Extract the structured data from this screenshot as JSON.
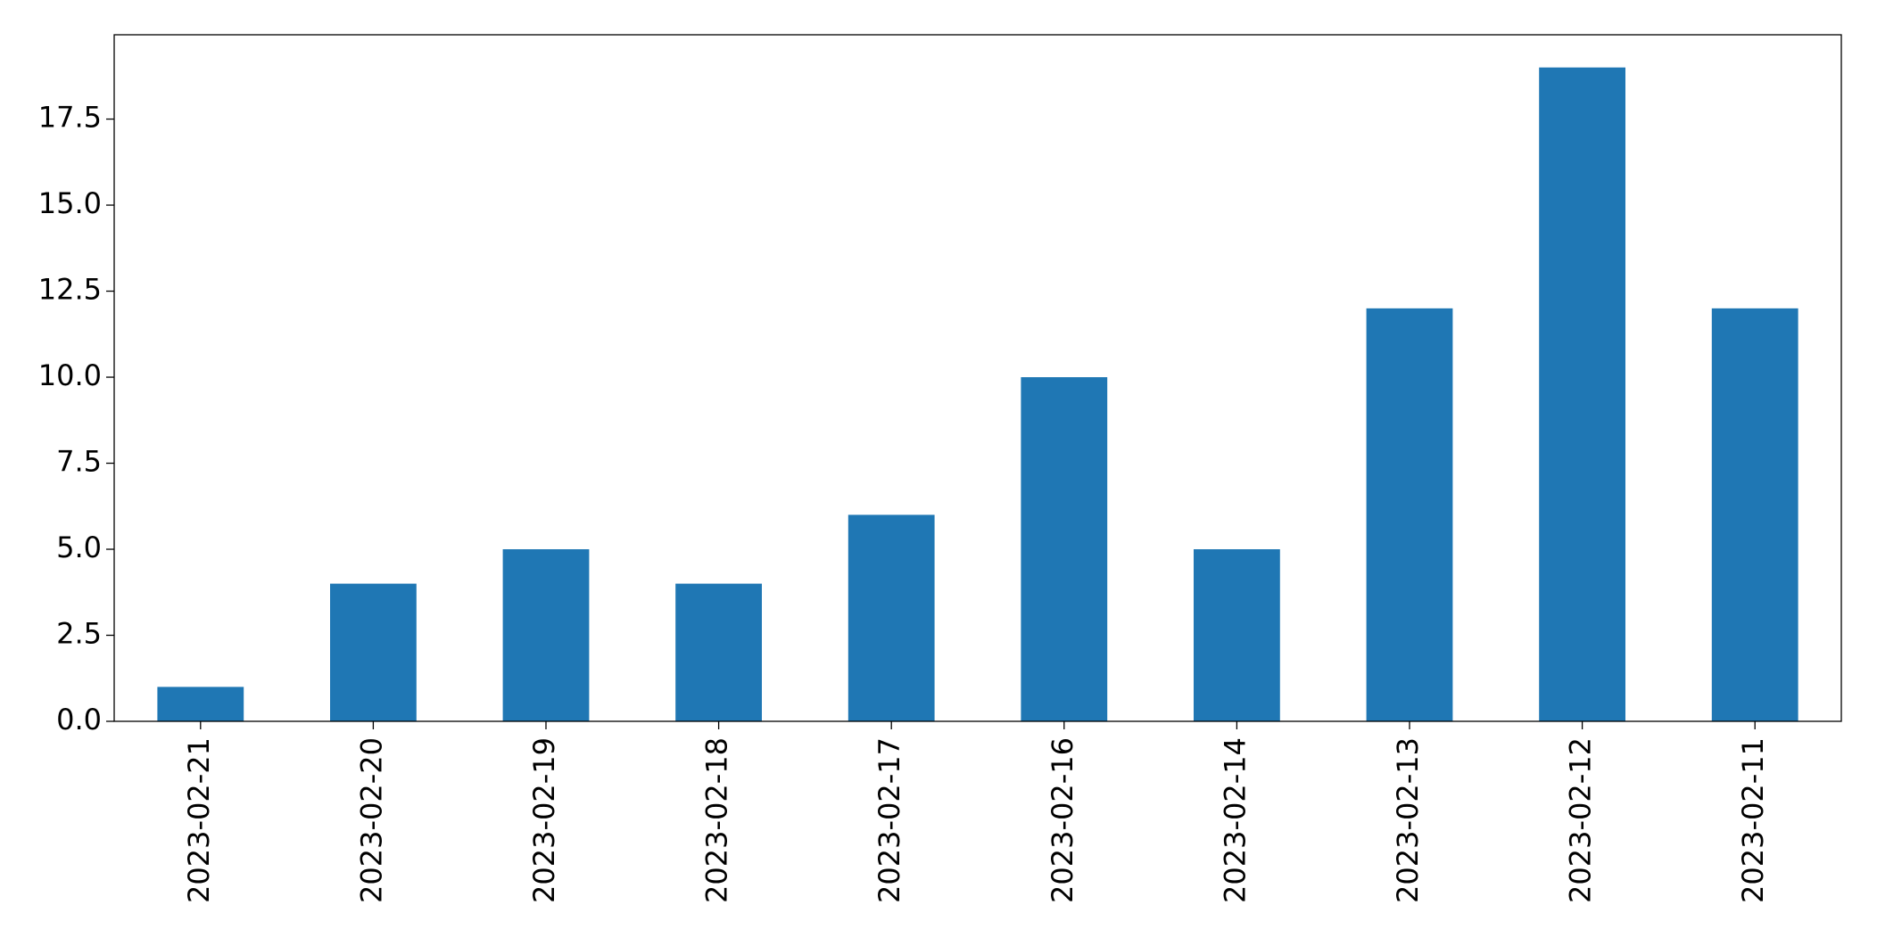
{
  "chart_data": {
    "type": "bar",
    "categories": [
      "2023-02-21",
      "2023-02-20",
      "2023-02-19",
      "2023-02-18",
      "2023-02-17",
      "2023-02-16",
      "2023-02-14",
      "2023-02-13",
      "2023-02-12",
      "2023-02-11"
    ],
    "values": [
      1,
      4,
      5,
      4,
      6,
      10,
      5,
      12,
      19,
      12
    ],
    "color": "#1f77b4",
    "ylim": [
      0,
      19.95
    ],
    "yticks": [
      {
        "value": 0,
        "label": "0.0"
      },
      2.5,
      {
        "value": 5,
        "label": "5.0"
      },
      7.5,
      {
        "value": 10,
        "label": "10.0"
      },
      12.5,
      {
        "value": 15,
        "label": "15.0"
      },
      17.5
    ],
    "grid": false
  }
}
